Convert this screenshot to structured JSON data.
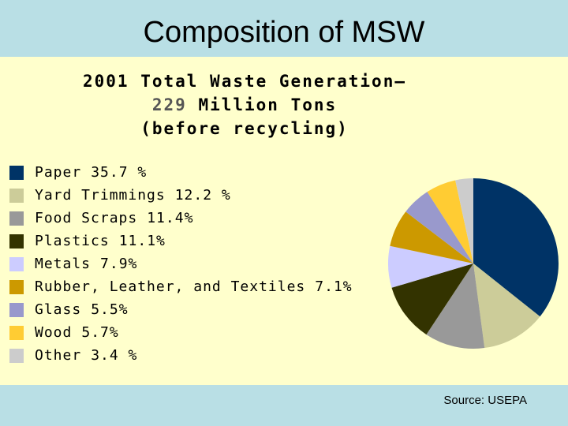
{
  "slide": {
    "title": "Composition of MSW",
    "source": "Source: USEPA"
  },
  "chart_data": {
    "type": "pie",
    "title_line1": "2001 Total Waste Generation—",
    "title_line2_number": "229",
    "title_line2_rest": "Million Tons",
    "title_line3": "(before recycling)",
    "legend_position": "left",
    "slices": [
      {
        "label": "Paper",
        "value_text": "35.7 %",
        "value": 35.7,
        "color": "#003366"
      },
      {
        "label": "Yard Trimmings",
        "value_text": "12.2 %",
        "value": 12.2,
        "color": "#cccc99"
      },
      {
        "label": "Food Scraps",
        "value_text": "11.4%",
        "value": 11.4,
        "color": "#999999"
      },
      {
        "label": "Plastics",
        "value_text": "11.1%",
        "value": 11.1,
        "color": "#333300"
      },
      {
        "label": "Metals",
        "value_text": "7.9%",
        "value": 7.9,
        "color": "#ccccff"
      },
      {
        "label": "Rubber, Leather, and Textiles",
        "value_text": "7.1%",
        "value": 7.1,
        "color": "#cc9900"
      },
      {
        "label": "Glass",
        "value_text": "5.5%",
        "value": 5.5,
        "color": "#9999cc"
      },
      {
        "label": "Wood",
        "value_text": "5.7%",
        "value": 5.7,
        "color": "#ffcc33"
      },
      {
        "label": "Other",
        "value_text": "3.4 %",
        "value": 3.4,
        "color": "#cccccc"
      }
    ]
  }
}
